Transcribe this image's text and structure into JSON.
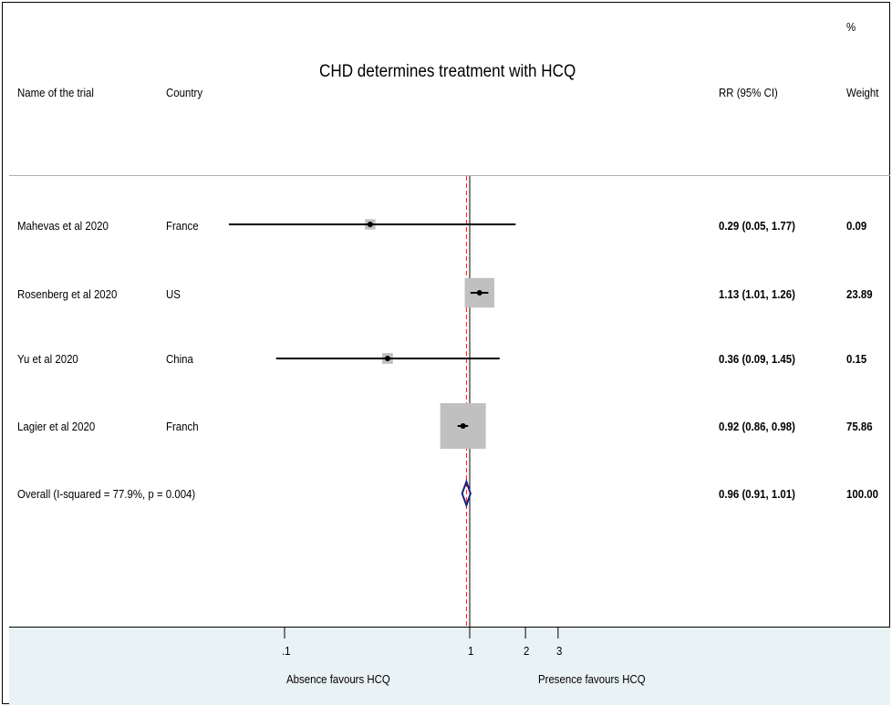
{
  "chart_data": {
    "type": "forest",
    "title": "CHD determines treatment with HCQ",
    "x_scale": "log",
    "xlim": [
      0.05,
      3.8
    ],
    "null_value": 1,
    "pooled_estimate": 0.96,
    "x_ticks": [
      {
        "value": 0.1,
        "label": ".1"
      },
      {
        "value": 1,
        "label": "1"
      },
      {
        "value": 2,
        "label": "2"
      },
      {
        "value": 3,
        "label": "3"
      }
    ],
    "x_axis_labels": {
      "left": "Absence favours HCQ",
      "right": "Presence favours HCQ"
    },
    "columns": {
      "trial": "Name of the trial",
      "country": "Country",
      "rr": "RR (95% CI)",
      "weight_top": "%",
      "weight": "Weight"
    },
    "studies": [
      {
        "name": "Mahevas et al 2020",
        "country": "France",
        "rr": 0.29,
        "lo": 0.05,
        "hi": 1.77,
        "rr_text": "0.29 (0.05, 1.77)",
        "weight": 0.09,
        "weight_text": "0.09"
      },
      {
        "name": "Rosenberg et al 2020",
        "country": "US",
        "rr": 1.13,
        "lo": 1.01,
        "hi": 1.26,
        "rr_text": "1.13 (1.01, 1.26)",
        "weight": 23.89,
        "weight_text": "23.89"
      },
      {
        "name": "Yu et al 2020",
        "country": "China",
        "rr": 0.36,
        "lo": 0.09,
        "hi": 1.45,
        "rr_text": "0.36 (0.09, 1.45)",
        "weight": 0.15,
        "weight_text": "0.15"
      },
      {
        "name": "Lagier et al 2020",
        "country": "Franch",
        "rr": 0.92,
        "lo": 0.86,
        "hi": 0.98,
        "rr_text": "0.92 (0.86, 0.98)",
        "weight": 75.86,
        "weight_text": "75.86"
      }
    ],
    "overall": {
      "label": "Overall  (I-squared = 77.9%, p = 0.004)",
      "rr": 0.96,
      "lo": 0.91,
      "hi": 1.01,
      "rr_text": "0.96 (0.91, 1.01)",
      "weight_text": "100.00"
    },
    "colors": {
      "weight_box": "#c0c0c0",
      "diamond": "#1a237e",
      "pooled_line": "#c62828",
      "axis_band": "#e9f2f4"
    }
  }
}
